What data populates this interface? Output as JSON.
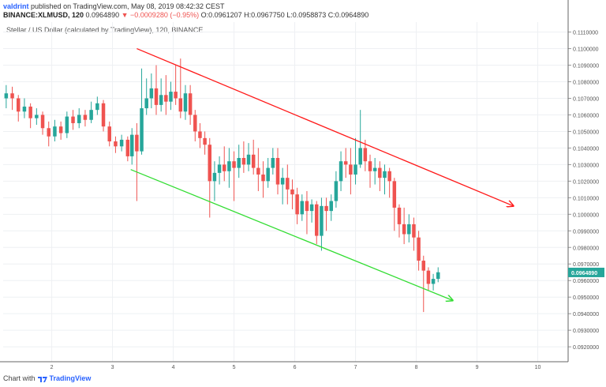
{
  "header": {
    "author": "valdrint",
    "published_text": "published on TradingView.com, May 08, 2019 08:42:32 CEST",
    "symbol": "BINANCE:XLMUSD, 120",
    "last": "0.0964890",
    "change_arrow": "▼",
    "change": "−0.0009280 (−0.95%)",
    "ohlc": "O:0.0961207 H:0.0967750 L:0.0958873 C:0.0964890"
  },
  "chart_title": "Stellar / US Dollar (calculated by TradingView), 120, BINANCE",
  "footer": {
    "prefix": "Chart with",
    "brand": "TradingView"
  },
  "colors": {
    "up": "#26a69a",
    "down": "#ef5350",
    "trend_upper": "#ff1a1a",
    "trend_lower": "#33dd33",
    "price_tag": "#26a69a",
    "grid": "#eef0f3"
  },
  "chart_data": {
    "type": "candlestick",
    "title": "Stellar / US Dollar (calculated by TradingView), 120, BINANCE",
    "ylim": [
      0.0911,
      0.1116
    ],
    "y_ticks": [
      "0.1110000",
      "0.1100000",
      "0.1090000",
      "0.1080000",
      "0.1070000",
      "0.1060000",
      "0.1050000",
      "0.1040000",
      "0.1030000",
      "0.1020000",
      "0.1010000",
      "0.1000000",
      "0.0990000",
      "0.0980000",
      "0.0970000",
      "0.0960000",
      "0.0950000",
      "0.0940000",
      "0.0930000",
      "0.0920000"
    ],
    "x_ticks": [
      "2",
      "3",
      "4",
      "5",
      "6",
      "7",
      "8",
      "9",
      "10"
    ],
    "last_price_label": "0.0964890",
    "last_price": 0.096489,
    "x_day_range": [
      1.2,
      10.5
    ],
    "trendlines": [
      {
        "name": "upper",
        "points": [
          [
            3.4,
            0.11
          ],
          [
            9.6,
            0.1005
          ]
        ]
      },
      {
        "name": "lower",
        "points": [
          [
            3.3,
            0.1027
          ],
          [
            8.6,
            0.0948
          ]
        ]
      }
    ],
    "candles": [
      [
        1.25,
        0.107,
        0.1073,
        0.1078,
        0.1064
      ],
      [
        1.35,
        0.1073,
        0.107,
        0.1077,
        0.1063
      ],
      [
        1.45,
        0.107,
        0.1062,
        0.1072,
        0.1056
      ],
      [
        1.55,
        0.1062,
        0.1065,
        0.107,
        0.1058
      ],
      [
        1.65,
        0.1065,
        0.1058,
        0.1067,
        0.1052
      ],
      [
        1.75,
        0.1058,
        0.106,
        0.1064,
        0.1054
      ],
      [
        1.85,
        0.106,
        0.1052,
        0.1062,
        0.1048
      ],
      [
        1.95,
        0.1052,
        0.1047,
        0.1056,
        0.1041
      ],
      [
        2.05,
        0.1047,
        0.1053,
        0.1057,
        0.1044
      ],
      [
        2.15,
        0.1053,
        0.1049,
        0.1056,
        0.1045
      ],
      [
        2.25,
        0.1049,
        0.1059,
        0.1062,
        0.1046
      ],
      [
        2.35,
        0.1059,
        0.1055,
        0.1063,
        0.1051
      ],
      [
        2.45,
        0.1055,
        0.106,
        0.1064,
        0.1052
      ],
      [
        2.55,
        0.106,
        0.1057,
        0.1063,
        0.1053
      ],
      [
        2.65,
        0.1057,
        0.1063,
        0.1068,
        0.1055
      ],
      [
        2.75,
        0.1063,
        0.1067,
        0.1071,
        0.106
      ],
      [
        2.85,
        0.1067,
        0.1053,
        0.1069,
        0.105
      ],
      [
        2.95,
        0.1053,
        0.1044,
        0.1056,
        0.1041
      ],
      [
        3.05,
        0.1044,
        0.1041,
        0.1047,
        0.1037
      ],
      [
        3.15,
        0.1041,
        0.1045,
        0.1048,
        0.1038
      ],
      [
        3.25,
        0.1045,
        0.1035,
        0.1047,
        0.1032
      ],
      [
        3.32,
        0.1035,
        0.1048,
        0.1052,
        0.103
      ],
      [
        3.4,
        0.1048,
        0.1038,
        0.1055,
        0.1008
      ],
      [
        3.48,
        0.1038,
        0.1064,
        0.1088,
        0.1036
      ],
      [
        3.56,
        0.1064,
        0.107,
        0.1082,
        0.106
      ],
      [
        3.64,
        0.107,
        0.1076,
        0.1085,
        0.1064
      ],
      [
        3.72,
        0.1076,
        0.1066,
        0.109,
        0.106
      ],
      [
        3.8,
        0.1066,
        0.1072,
        0.1082,
        0.1062
      ],
      [
        3.88,
        0.1072,
        0.1068,
        0.1084,
        0.106
      ],
      [
        3.96,
        0.1068,
        0.1074,
        0.108,
        0.1063
      ],
      [
        4.04,
        0.1074,
        0.107,
        0.109,
        0.1066
      ],
      [
        4.12,
        0.107,
        0.1062,
        0.1094,
        0.1058
      ],
      [
        4.2,
        0.1062,
        0.1073,
        0.1078,
        0.1057
      ],
      [
        4.28,
        0.1073,
        0.106,
        0.1078,
        0.1054
      ],
      [
        4.36,
        0.106,
        0.105,
        0.1063,
        0.1044
      ],
      [
        4.44,
        0.105,
        0.1046,
        0.1055,
        0.104
      ],
      [
        4.52,
        0.1046,
        0.1042,
        0.105,
        0.1036
      ],
      [
        4.6,
        0.1042,
        0.102,
        0.1046,
        0.0998
      ],
      [
        4.68,
        0.102,
        0.1025,
        0.1032,
        0.1008
      ],
      [
        4.76,
        0.1025,
        0.103,
        0.1035,
        0.1018
      ],
      [
        4.84,
        0.103,
        0.1026,
        0.1041,
        0.102
      ],
      [
        4.92,
        0.1026,
        0.1032,
        0.104,
        0.1016
      ],
      [
        5.0,
        0.1032,
        0.1028,
        0.1038,
        0.1008
      ],
      [
        5.08,
        0.1028,
        0.1034,
        0.1042,
        0.1022
      ],
      [
        5.16,
        0.1034,
        0.103,
        0.1044,
        0.1025
      ],
      [
        5.24,
        0.103,
        0.1036,
        0.1043,
        0.1026
      ],
      [
        5.32,
        0.1036,
        0.1028,
        0.1045,
        0.1024
      ],
      [
        5.4,
        0.1028,
        0.1024,
        0.104,
        0.1014
      ],
      [
        5.48,
        0.1024,
        0.102,
        0.1032,
        0.101
      ],
      [
        5.56,
        0.102,
        0.1028,
        0.1034,
        0.1016
      ],
      [
        5.64,
        0.1028,
        0.1034,
        0.104,
        0.1024
      ],
      [
        5.72,
        0.1034,
        0.1018,
        0.104,
        0.1012
      ],
      [
        5.8,
        0.1018,
        0.1022,
        0.1028,
        0.1006
      ],
      [
        5.88,
        0.1022,
        0.1015,
        0.103,
        0.1006
      ],
      [
        5.96,
        0.1015,
        0.1012,
        0.1021,
        0.1003
      ],
      [
        6.04,
        0.1012,
        0.1,
        0.1016,
        0.0994
      ],
      [
        6.12,
        0.1,
        0.1008,
        0.1012,
        0.0996
      ],
      [
        6.2,
        0.1008,
        0.1002,
        0.1014,
        0.0988
      ],
      [
        6.28,
        0.1002,
        0.1006,
        0.1009,
        0.0995
      ],
      [
        6.36,
        0.1006,
        0.0987,
        0.1008,
        0.0982
      ],
      [
        6.44,
        0.0987,
        0.1005,
        0.101,
        0.0978
      ],
      [
        6.52,
        0.1005,
        0.1002,
        0.101,
        0.099
      ],
      [
        6.6,
        0.1002,
        0.1008,
        0.1012,
        0.0996
      ],
      [
        6.68,
        0.1008,
        0.102,
        0.1026,
        0.1004
      ],
      [
        6.76,
        0.102,
        0.1032,
        0.1038,
        0.1014
      ],
      [
        6.84,
        0.1032,
        0.103,
        0.104,
        0.1022
      ],
      [
        6.92,
        0.103,
        0.1024,
        0.104,
        0.1012
      ],
      [
        7.0,
        0.1024,
        0.103,
        0.1046,
        0.1018
      ],
      [
        7.08,
        0.103,
        0.104,
        0.1063,
        0.1028
      ],
      [
        7.16,
        0.104,
        0.1032,
        0.1045,
        0.1026
      ],
      [
        7.24,
        0.1032,
        0.1026,
        0.1036,
        0.1016
      ],
      [
        7.32,
        0.1026,
        0.1028,
        0.1034,
        0.1018
      ],
      [
        7.4,
        0.1028,
        0.1022,
        0.1032,
        0.1014
      ],
      [
        7.48,
        0.1022,
        0.1026,
        0.103,
        0.1012
      ],
      [
        7.56,
        0.1026,
        0.102,
        0.1028,
        0.101
      ],
      [
        7.64,
        0.102,
        0.1004,
        0.1022,
        0.099
      ],
      [
        7.72,
        0.1004,
        0.0994,
        0.1006,
        0.0986
      ],
      [
        7.8,
        0.0994,
        0.0988,
        0.1004,
        0.0982
      ],
      [
        7.88,
        0.0988,
        0.0994,
        0.1,
        0.0983
      ],
      [
        7.96,
        0.0994,
        0.0986,
        0.0998,
        0.0978
      ],
      [
        8.04,
        0.0986,
        0.0972,
        0.099,
        0.0966
      ],
      [
        8.12,
        0.0972,
        0.0966,
        0.0975,
        0.0941
      ],
      [
        8.2,
        0.0966,
        0.0958,
        0.0968,
        0.0954
      ],
      [
        8.28,
        0.0958,
        0.0961,
        0.0964,
        0.0954
      ],
      [
        8.36,
        0.0961,
        0.0965,
        0.0968,
        0.0959
      ]
    ]
  }
}
